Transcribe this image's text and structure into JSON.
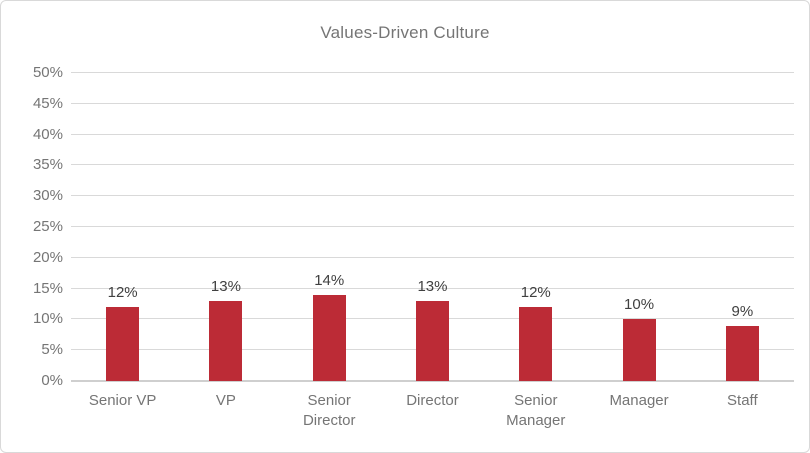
{
  "chart_data": {
    "type": "bar",
    "title": "Values-Driven Culture",
    "categories": [
      "Senior VP",
      "VP",
      "Senior Director",
      "Director",
      "Senior Manager",
      "Manager",
      "Staff"
    ],
    "values": [
      12,
      13,
      14,
      13,
      12,
      10,
      9
    ],
    "data_labels": [
      "12%",
      "13%",
      "14%",
      "13%",
      "12%",
      "10%",
      "9%"
    ],
    "xlabel": "",
    "ylabel": "",
    "ylim": [
      0,
      50
    ],
    "y_tick_labels": [
      "50%",
      "45%",
      "40%",
      "35%",
      "30%",
      "25%",
      "20%",
      "15%",
      "10%",
      "5%",
      "0%"
    ],
    "grid": "horizontal",
    "legend": "none",
    "colors": {
      "bar": "#bc2b36",
      "gridline": "#d9d9d9",
      "axis_line": "#cfcfcf",
      "title_text": "#757575",
      "axis_text": "#757575",
      "data_label_text": "#404040",
      "frame_border": "#d9d9d9",
      "background": "#ffffff"
    }
  }
}
